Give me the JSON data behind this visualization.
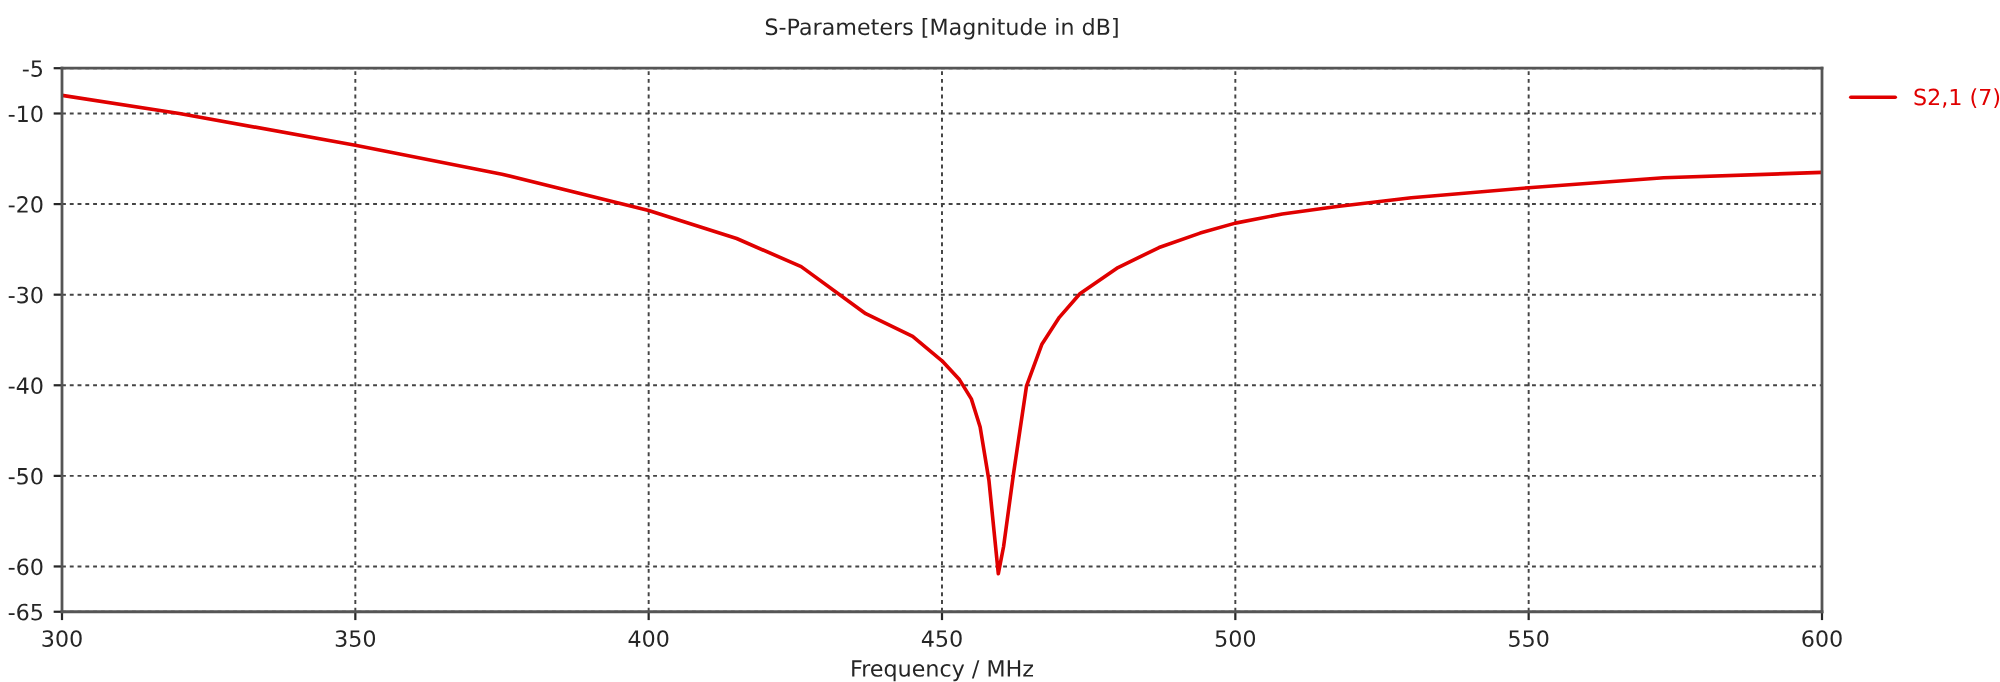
{
  "chart_data": {
    "type": "line",
    "title": "S-Parameters [Magnitude in dB]",
    "xlabel": "Frequency / MHz",
    "xlim": [
      300,
      600
    ],
    "xticks": [
      300,
      350,
      400,
      450,
      500,
      550,
      600
    ],
    "ylim": [
      -65,
      -5
    ],
    "yticks": [
      -65,
      -60,
      -50,
      -40,
      -30,
      -20,
      -10,
      -5
    ],
    "grid": true,
    "legend": "top right",
    "line_style": "solid",
    "marker": "none",
    "series": [
      {
        "name": "S2,1 (7)",
        "color": "#e00000",
        "x": [
          300,
          320,
          350,
          375,
          400,
          415,
          426,
          437,
          445,
          450,
          453,
          455,
          456.5,
          458,
          459.6,
          460.5,
          462.2,
          464.4,
          467,
          470,
          473.5,
          480,
          487,
          494,
          500,
          508,
          517,
          530,
          550,
          573,
          600
        ],
        "values": [
          -8.0,
          -10.0,
          -13.5,
          -16.7,
          -20.7,
          -23.8,
          -26.9,
          -32.1,
          -34.6,
          -37.3,
          -39.4,
          -41.5,
          -44.6,
          -50.5,
          -60.8,
          -57.8,
          -49.7,
          -40.1,
          -35.5,
          -32.5,
          -29.9,
          -27.0,
          -24.8,
          -23.2,
          -22.1,
          -21.1,
          -20.3,
          -19.3,
          -18.2,
          -17.1,
          -16.5
        ]
      }
    ]
  }
}
